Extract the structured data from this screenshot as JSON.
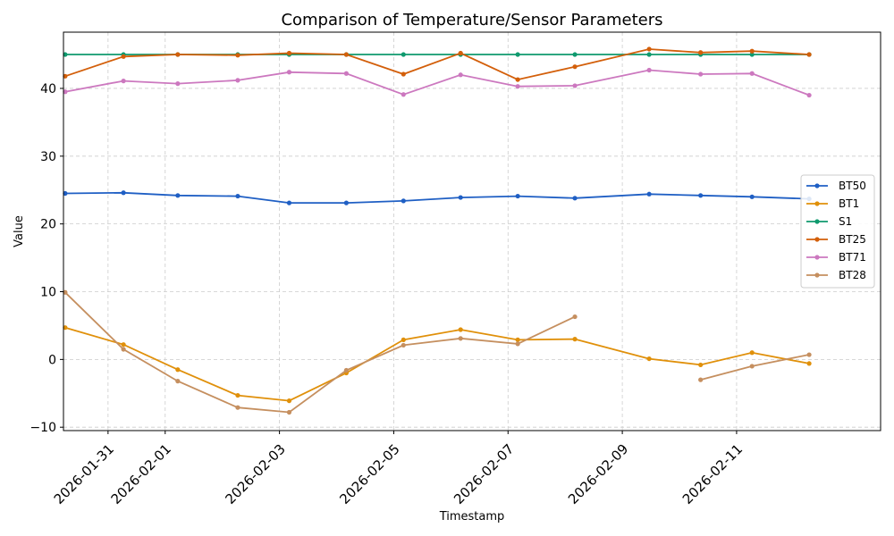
{
  "chart_data": {
    "type": "line",
    "title": "Comparison of Temperature/Sensor Parameters",
    "xlabel": "Timestamp",
    "ylabel": "Value",
    "ylim": [
      -10.5,
      48.3
    ],
    "xlim": [
      -0.65,
      13.65
    ],
    "yticks": [
      -10,
      0,
      10,
      20,
      30,
      40
    ],
    "xticks": [
      {
        "pos": 0.13,
        "label": "2026-01-31"
      },
      {
        "pos": 1.13,
        "label": "2026-02-01"
      },
      {
        "pos": 3.13,
        "label": "2026-02-03"
      },
      {
        "pos": 5.13,
        "label": "2026-02-05"
      },
      {
        "pos": 7.13,
        "label": "2026-02-07"
      },
      {
        "pos": 9.13,
        "label": "2026-02-09"
      },
      {
        "pos": 11.13,
        "label": "2026-02-11"
      }
    ],
    "legend": "right",
    "series": [
      {
        "name": "BT50",
        "color": "#1f5fc4",
        "x": [
          -0.62,
          0.4,
          1.35,
          2.4,
          3.3,
          4.3,
          5.3,
          6.3,
          7.3,
          8.3,
          9.6,
          10.5,
          11.4,
          12.4
        ],
        "values": [
          24.5,
          24.6,
          24.2,
          24.1,
          23.1,
          23.1,
          23.4,
          23.9,
          24.1,
          23.8,
          24.4,
          24.2,
          24.0,
          23.7
        ]
      },
      {
        "name": "BT1",
        "color": "#e0900a",
        "x": [
          -0.62,
          0.4,
          1.35,
          2.4,
          3.3,
          4.3,
          5.3,
          6.3,
          7.3,
          8.3,
          9.6,
          10.5,
          11.4,
          12.4
        ],
        "values": [
          4.7,
          2.2,
          -1.5,
          -5.3,
          -6.1,
          -2.0,
          2.9,
          4.4,
          2.9,
          3.0,
          0.1,
          -0.8,
          1.0,
          -0.6
        ]
      },
      {
        "name": "S1",
        "color": "#0f9a6e",
        "x": [
          -0.62,
          0.4,
          1.35,
          2.4,
          3.3,
          4.3,
          5.3,
          6.3,
          7.3,
          8.3,
          9.6,
          10.5,
          11.4,
          12.4
        ],
        "values": [
          45.0,
          45.0,
          45.0,
          45.0,
          45.0,
          45.0,
          45.0,
          45.0,
          45.0,
          45.0,
          45.0,
          45.0,
          45.0,
          45.0
        ]
      },
      {
        "name": "BT25",
        "color": "#d35f0a",
        "x": [
          -0.62,
          0.4,
          1.35,
          2.4,
          3.3,
          4.3,
          5.3,
          6.3,
          7.3,
          8.3,
          9.6,
          10.5,
          11.4,
          12.4
        ],
        "values": [
          41.8,
          44.7,
          45.0,
          44.9,
          45.2,
          45.0,
          42.1,
          45.2,
          41.3,
          43.2,
          45.8,
          45.3,
          45.5,
          45.0
        ]
      },
      {
        "name": "BT71",
        "color": "#cc78bf",
        "x": [
          -0.62,
          0.4,
          1.35,
          2.4,
          3.3,
          4.3,
          5.3,
          6.3,
          7.3,
          8.3,
          9.6,
          10.5,
          11.4,
          12.4
        ],
        "values": [
          39.5,
          41.1,
          40.7,
          41.2,
          42.4,
          42.2,
          39.1,
          42.0,
          40.3,
          40.4,
          42.7,
          42.1,
          42.2,
          39.0
        ]
      },
      {
        "name": "BT28",
        "color": "#c58f5f",
        "x": [
          -0.62,
          0.4,
          1.35,
          2.4,
          3.3,
          4.3,
          5.3,
          6.3,
          7.3,
          8.3,
          10.5,
          11.4,
          12.4
        ],
        "values": [
          9.9,
          1.5,
          -3.2,
          -7.1,
          -7.8,
          -1.6,
          2.1,
          3.1,
          2.3,
          6.3,
          -3.0,
          -1.0,
          0.7
        ],
        "segments": [
          [
            0,
            9
          ],
          [
            10,
            12
          ]
        ]
      }
    ]
  }
}
